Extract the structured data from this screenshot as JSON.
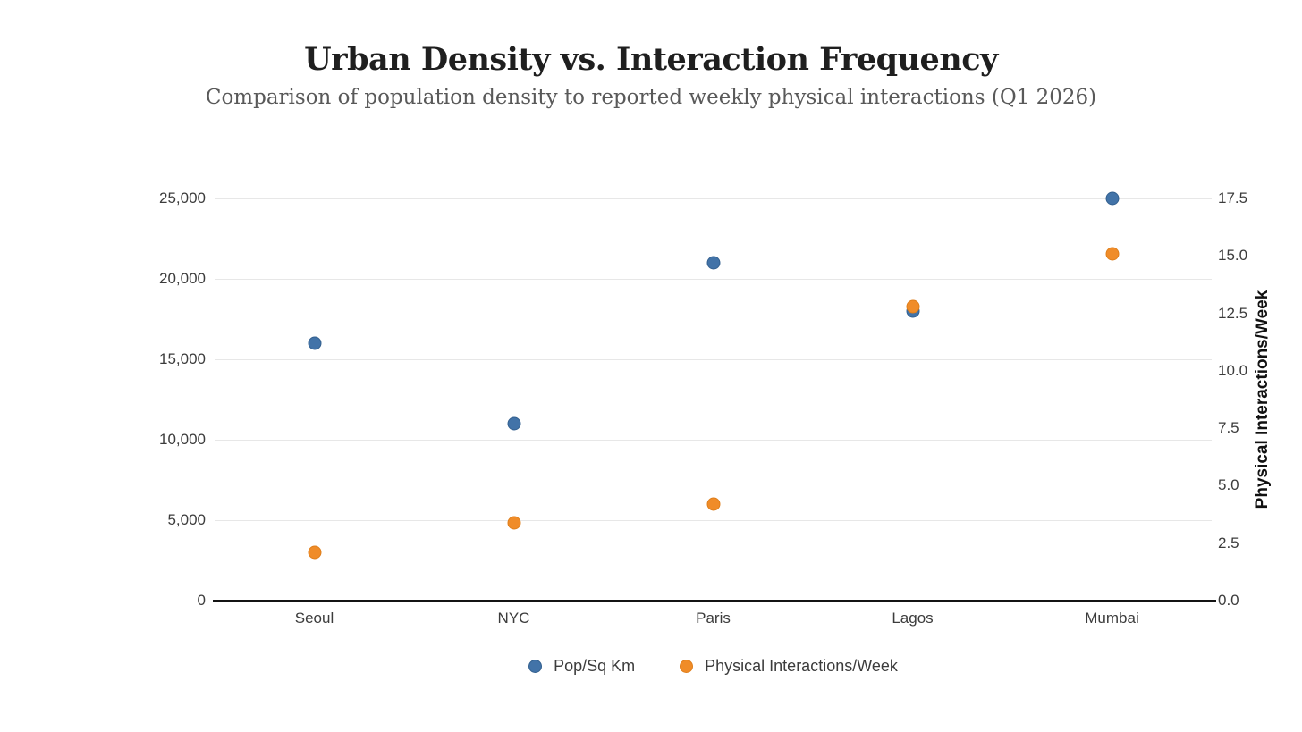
{
  "page": {
    "background_color": "#ffffff"
  },
  "header": {
    "title": "Urban Density vs. Interaction Frequency",
    "subtitle": "Comparison of population density to reported weekly physical interactions (Q1 2026)"
  },
  "chart_data": {
    "type": "scatter",
    "title": "Urban Density vs. Interaction Frequency",
    "subtitle": "Comparison of population density to reported weekly physical interactions (Q1 2026)",
    "categories": [
      "Seoul",
      "NYC",
      "Paris",
      "Lagos",
      "Mumbai"
    ],
    "series": [
      {
        "name": "Pop/Sq Km",
        "axis": "left",
        "color": "#4273a8",
        "border_color": "#33608f",
        "values": [
          16000,
          11000,
          21000,
          18000,
          25000
        ]
      },
      {
        "name": "Physical Interactions/Week",
        "axis": "right",
        "color": "#f08c28",
        "border_color": "#de7e1b",
        "values": [
          2.1,
          3.4,
          4.2,
          12.8,
          15.1
        ]
      }
    ],
    "left_axis": {
      "range": [
        0,
        25000
      ],
      "ticks": [
        0,
        5000,
        10000,
        15000,
        20000,
        25000
      ],
      "tick_labels": [
        "0",
        "5,000",
        "10,000",
        "15,000",
        "20,000",
        "25,000"
      ]
    },
    "right_axis": {
      "label": "Physical Interactions/Week",
      "range": [
        0,
        17.5
      ],
      "ticks": [
        0,
        2.5,
        5,
        7.5,
        10,
        12.5,
        15,
        17.5
      ],
      "tick_labels": [
        "0.0",
        "2.5",
        "5.0",
        "7.5",
        "10.0",
        "12.5",
        "15.0",
        "17.5"
      ]
    },
    "grid": "horizontal",
    "legend_position": "bottom"
  }
}
